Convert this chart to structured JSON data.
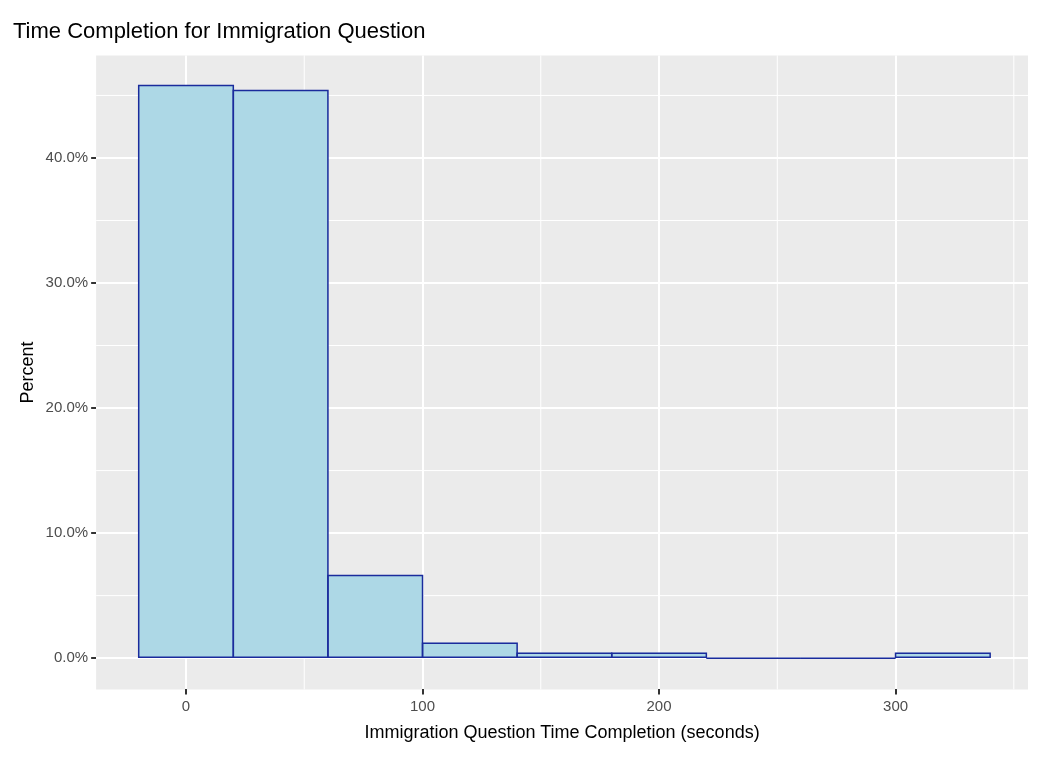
{
  "chart_data": {
    "type": "histogram",
    "title": "Time Completion for Immigration Question",
    "xlabel": "Immigration Question Time Completion (seconds)",
    "ylabel": "Percent",
    "bins": [
      -20,
      20,
      60,
      100,
      140,
      180,
      220,
      260,
      300,
      340
    ],
    "values": [
      45.8,
      45.4,
      6.6,
      1.2,
      0.4,
      0.4,
      0,
      0,
      0.4
    ],
    "color": "#add8e6",
    "xlim": [
      -38,
      356
    ],
    "xticks": [
      0,
      100,
      200,
      300
    ],
    "ylim": [
      -2.5,
      48.2
    ],
    "yticks": [
      {
        "value": 0,
        "label": "0.0%"
      },
      {
        "value": 10,
        "label": "10.0%"
      },
      {
        "value": 20,
        "label": "20.0%"
      },
      {
        "value": 30,
        "label": "30.0%"
      },
      {
        "value": 40,
        "label": "40.0%"
      }
    ],
    "grid": true,
    "legend": false
  }
}
